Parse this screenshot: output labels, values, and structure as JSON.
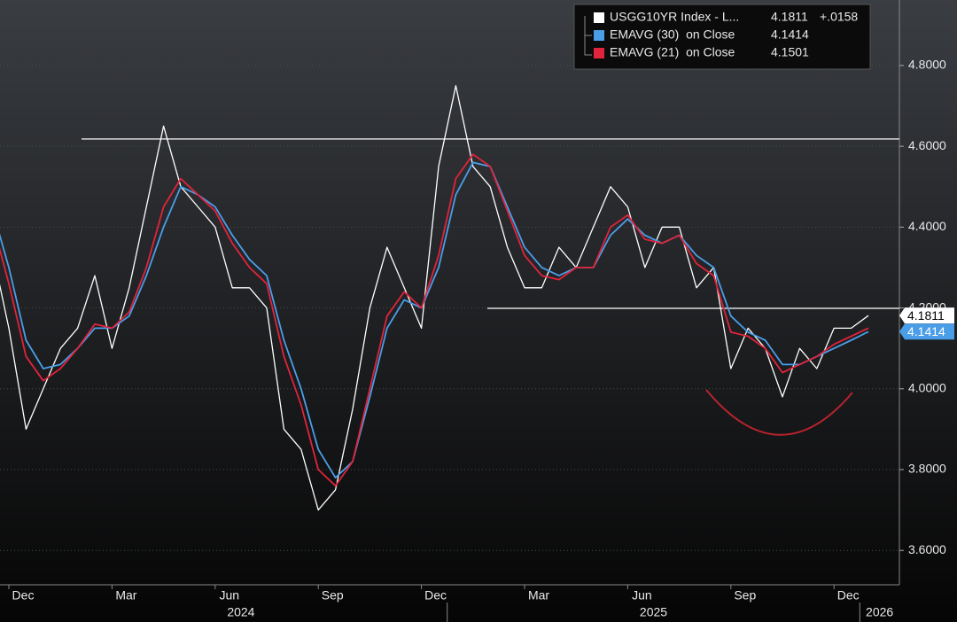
{
  "chart_data": {
    "type": "line",
    "categories": [
      null,
      "Dec",
      null,
      null,
      null,
      null,
      null,
      "Mar",
      null,
      null,
      null,
      null,
      null,
      "Jun",
      null,
      null,
      null,
      null,
      null,
      "Sep",
      null,
      null,
      null,
      null,
      null,
      "Dec",
      null,
      null,
      null,
      null,
      null,
      "Mar",
      null,
      null,
      null,
      null,
      null,
      "Jun",
      null,
      null,
      null,
      null,
      null,
      "Sep",
      null,
      null,
      null,
      null,
      null,
      "Dec",
      null,
      null
    ],
    "year_labels": [
      "2024",
      "2025",
      "2026"
    ],
    "series": [
      {
        "name": "USGG10YR Index - L...",
        "color": "#ffffff",
        "change": "+.0158",
        "values": [
          4.35,
          4.15,
          3.9,
          4.0,
          4.1,
          4.15,
          4.28,
          4.1,
          4.25,
          4.45,
          4.65,
          4.5,
          4.45,
          4.4,
          4.25,
          4.25,
          4.2,
          3.9,
          3.85,
          3.7,
          3.75,
          3.95,
          4.2,
          4.35,
          4.25,
          4.15,
          4.55,
          4.75,
          4.55,
          4.5,
          4.35,
          4.25,
          4.25,
          4.35,
          4.3,
          4.4,
          4.5,
          4.45,
          4.3,
          4.4,
          4.4,
          4.25,
          4.3,
          4.05,
          4.15,
          4.1,
          3.98,
          4.1,
          4.05,
          4.15,
          4.15,
          4.1811
        ]
      },
      {
        "name": "EMAVG (30)  on Close",
        "color": "#4a9ee8",
        "values": [
          4.45,
          4.3,
          4.12,
          4.05,
          4.06,
          4.1,
          4.15,
          4.15,
          4.18,
          4.28,
          4.4,
          4.5,
          4.48,
          4.45,
          4.38,
          4.32,
          4.28,
          4.12,
          4.0,
          3.85,
          3.78,
          3.82,
          3.98,
          4.15,
          4.22,
          4.2,
          4.3,
          4.48,
          4.56,
          4.55,
          4.45,
          4.35,
          4.3,
          4.28,
          4.3,
          4.3,
          4.38,
          4.42,
          4.38,
          4.36,
          4.38,
          4.33,
          4.3,
          4.18,
          4.14,
          4.12,
          4.06,
          4.06,
          4.08,
          4.1,
          4.12,
          4.1414
        ]
      },
      {
        "name": "EMAVG (21)  on Close",
        "color": "#e0243c",
        "values": [
          4.42,
          4.26,
          4.08,
          4.02,
          4.05,
          4.1,
          4.16,
          4.15,
          4.19,
          4.3,
          4.45,
          4.52,
          4.48,
          4.44,
          4.36,
          4.3,
          4.26,
          4.08,
          3.96,
          3.8,
          3.76,
          3.82,
          4.0,
          4.18,
          4.24,
          4.2,
          4.33,
          4.52,
          4.58,
          4.55,
          4.44,
          4.33,
          4.28,
          4.27,
          4.3,
          4.3,
          4.4,
          4.43,
          4.37,
          4.36,
          4.38,
          4.31,
          4.28,
          4.14,
          4.13,
          4.1,
          4.04,
          4.06,
          4.08,
          4.11,
          4.13,
          4.1501
        ]
      }
    ],
    "ylim": [
      3.515,
      4.962
    ],
    "yticks": [
      {
        "value": 3.6,
        "label": "3.6000"
      },
      {
        "value": 3.8,
        "label": "3.8000"
      },
      {
        "value": 4.0,
        "label": "4.0000"
      },
      {
        "value": 4.2,
        "label": "4.2000"
      },
      {
        "value": 4.4,
        "label": "4.4000"
      },
      {
        "value": 4.6,
        "label": "4.6000"
      },
      {
        "value": 4.8,
        "label": "4.8000"
      }
    ],
    "hlines": [
      4.618,
      4.199
    ],
    "grid": true
  }
}
